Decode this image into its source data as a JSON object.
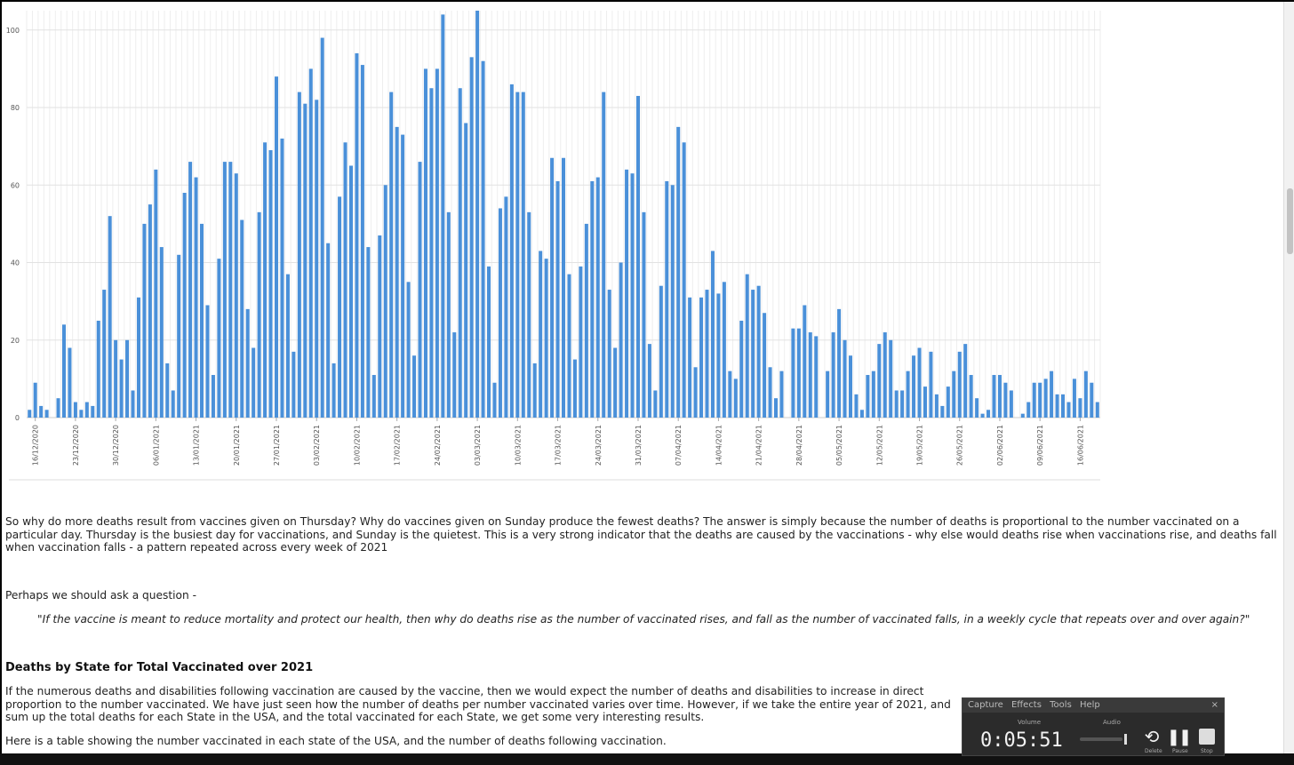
{
  "chart_data": {
    "type": "bar",
    "y_ticks": [
      "0",
      "20",
      "40",
      "60",
      "80",
      "100"
    ],
    "ylim": [
      0,
      105
    ],
    "grid": true,
    "color": "#4a90d9",
    "x_tick_labels": [
      "16/12/2020",
      "23/12/2020",
      "30/12/2020",
      "06/01/2021",
      "13/01/2021",
      "20/01/2021",
      "27/01/2021",
      "03/02/2021",
      "10/02/2021",
      "17/02/2021",
      "24/02/2021",
      "03/03/2021",
      "10/03/2021",
      "17/03/2021",
      "24/03/2021",
      "31/03/2021",
      "07/04/2021",
      "14/04/2021",
      "21/04/2021",
      "28/04/2021",
      "05/05/2021",
      "12/05/2021",
      "19/05/2021",
      "26/05/2021",
      "02/06/2021",
      "09/06/2021",
      "16/06/2021"
    ],
    "values": [
      2,
      9,
      3,
      2,
      0,
      5,
      24,
      18,
      4,
      2,
      4,
      3,
      25,
      33,
      52,
      20,
      15,
      20,
      7,
      31,
      50,
      55,
      64,
      44,
      14,
      7,
      42,
      58,
      66,
      62,
      50,
      29,
      11,
      41,
      66,
      66,
      63,
      51,
      28,
      18,
      53,
      71,
      69,
      88,
      72,
      37,
      17,
      84,
      81,
      90,
      82,
      98,
      45,
      14,
      57,
      71,
      65,
      94,
      91,
      44,
      11,
      47,
      60,
      84,
      75,
      73,
      35,
      16,
      66,
      90,
      85,
      90,
      104,
      53,
      22,
      85,
      76,
      93,
      105,
      92,
      39,
      9,
      54,
      57,
      86,
      84,
      84,
      53,
      14,
      43,
      41,
      67,
      61,
      67,
      37,
      15,
      39,
      50,
      61,
      62,
      84,
      33,
      18,
      40,
      64,
      63,
      83,
      53,
      19,
      7,
      34,
      61,
      60,
      75,
      71,
      31,
      13,
      31,
      33,
      43,
      32,
      35,
      12,
      10,
      25,
      37,
      33,
      34,
      27,
      13,
      5,
      12,
      0,
      23,
      23,
      29,
      22,
      21,
      0,
      12,
      22,
      28,
      20,
      16,
      6,
      2,
      11,
      12,
      19,
      22,
      20,
      7,
      7,
      12,
      16,
      18,
      8,
      17,
      6,
      3,
      8,
      12,
      17,
      19,
      11,
      5,
      1,
      2,
      11,
      11,
      9,
      7,
      0,
      1,
      4,
      9,
      9,
      10,
      12,
      6,
      6,
      4,
      10,
      5,
      12,
      9,
      4
    ]
  },
  "article": {
    "para1": "So why do more deaths result from vaccines given on Thursday? Why do vaccines given on Sunday produce the fewest deaths? The answer is simply because the number of deaths is proportional to the number vaccinated on a particular day. Thursday is the busiest day for vaccinations, and Sunday is the quietest. This is a very strong indicator that the deaths are caused by the vaccinations - why else would deaths rise when vaccinations rise, and deaths fall when vaccination falls - a pattern repeated across every week of 2021",
    "para2": "Perhaps we should ask a question -",
    "quote": "\"If the vaccine is meant to reduce mortality and protect our health, then why do deaths rise as the number of vaccinated rises, and fall as the number of vaccinated falls, in a weekly cycle that repeats over and over again?\"",
    "heading": "Deaths by State for Total Vaccinated over 2021",
    "para3": "If the numerous deaths and disabilities following vaccination are caused by the vaccine, then we would expect the number of deaths and disabilities to increase in direct proportion to the number vaccinated. We have just seen how the number of deaths per number vaccinated varies over time. However, if we take the entire year of 2021, and sum up the total deaths for each State in the USA, and the total vaccinated for each State, we get some very interesting results.",
    "para4": "Here is a table showing the number vaccinated in each state of the USA, and the number of deaths following vaccination."
  },
  "recorder": {
    "menu": [
      "Capture",
      "Effects",
      "Tools",
      "Help"
    ],
    "close": "×",
    "volume_label": "Volume",
    "audio_label": "Audio",
    "time": "0:05:51",
    "restart_label": "Delete",
    "pause_label": "Pause",
    "stop_label": "Stop"
  }
}
